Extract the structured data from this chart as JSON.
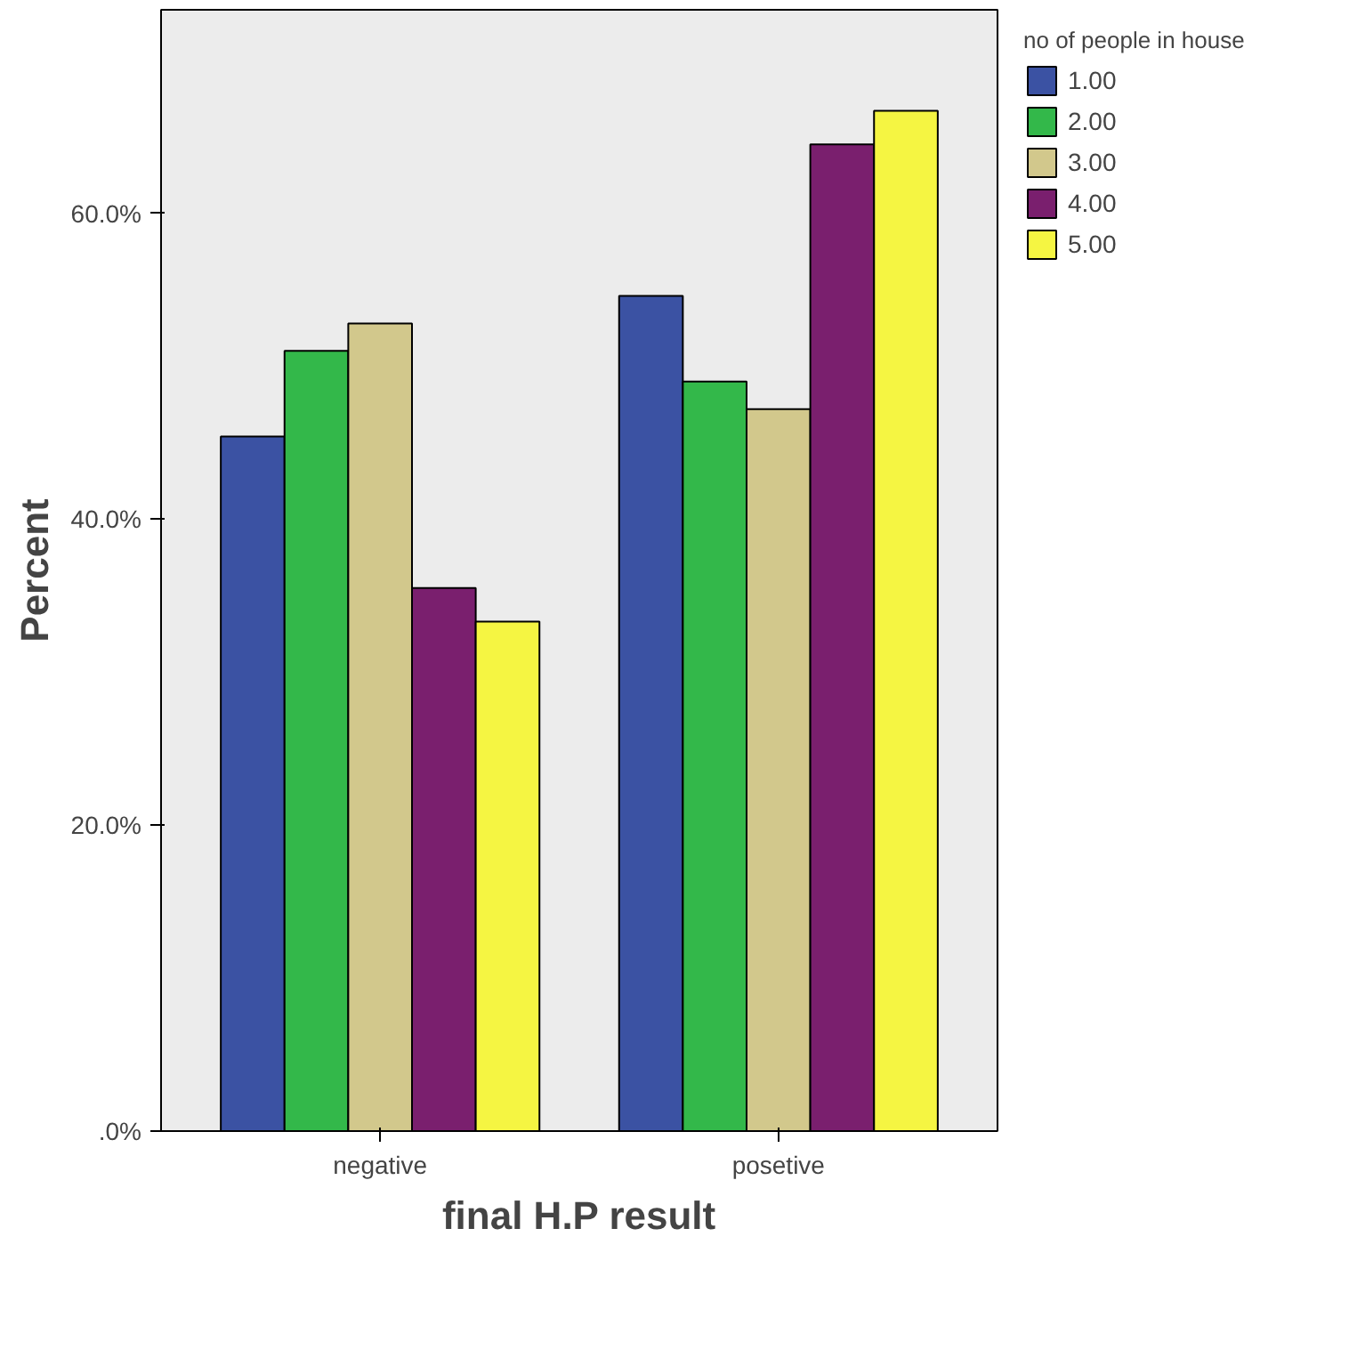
{
  "chart_data": {
    "type": "bar",
    "xlabel": "final H.P result",
    "ylabel": "Percent",
    "legend_title": "no of people in house",
    "categories": [
      "negative",
      "posetive"
    ],
    "series": [
      {
        "name": "1.00",
        "color": "#3b52a3",
        "values": [
          45.4,
          54.6
        ]
      },
      {
        "name": "2.00",
        "color": "#33b84a",
        "values": [
          51.0,
          49.0
        ]
      },
      {
        "name": "3.00",
        "color": "#d2c88c",
        "values": [
          52.8,
          47.2
        ]
      },
      {
        "name": "4.00",
        "color": "#7a1f6e",
        "values": [
          35.5,
          64.5
        ]
      },
      {
        "name": "5.00",
        "color": "#f5f542",
        "values": [
          33.3,
          66.7
        ]
      }
    ],
    "ylim": [
      0,
      73.3
    ],
    "yticks": [
      {
        "value": 0,
        "label": ".0%"
      },
      {
        "value": 20,
        "label": "20.0%"
      },
      {
        "value": 40,
        "label": "40.0%"
      },
      {
        "value": 60,
        "label": "60.0%"
      }
    ],
    "legend": "right",
    "grid": false
  }
}
